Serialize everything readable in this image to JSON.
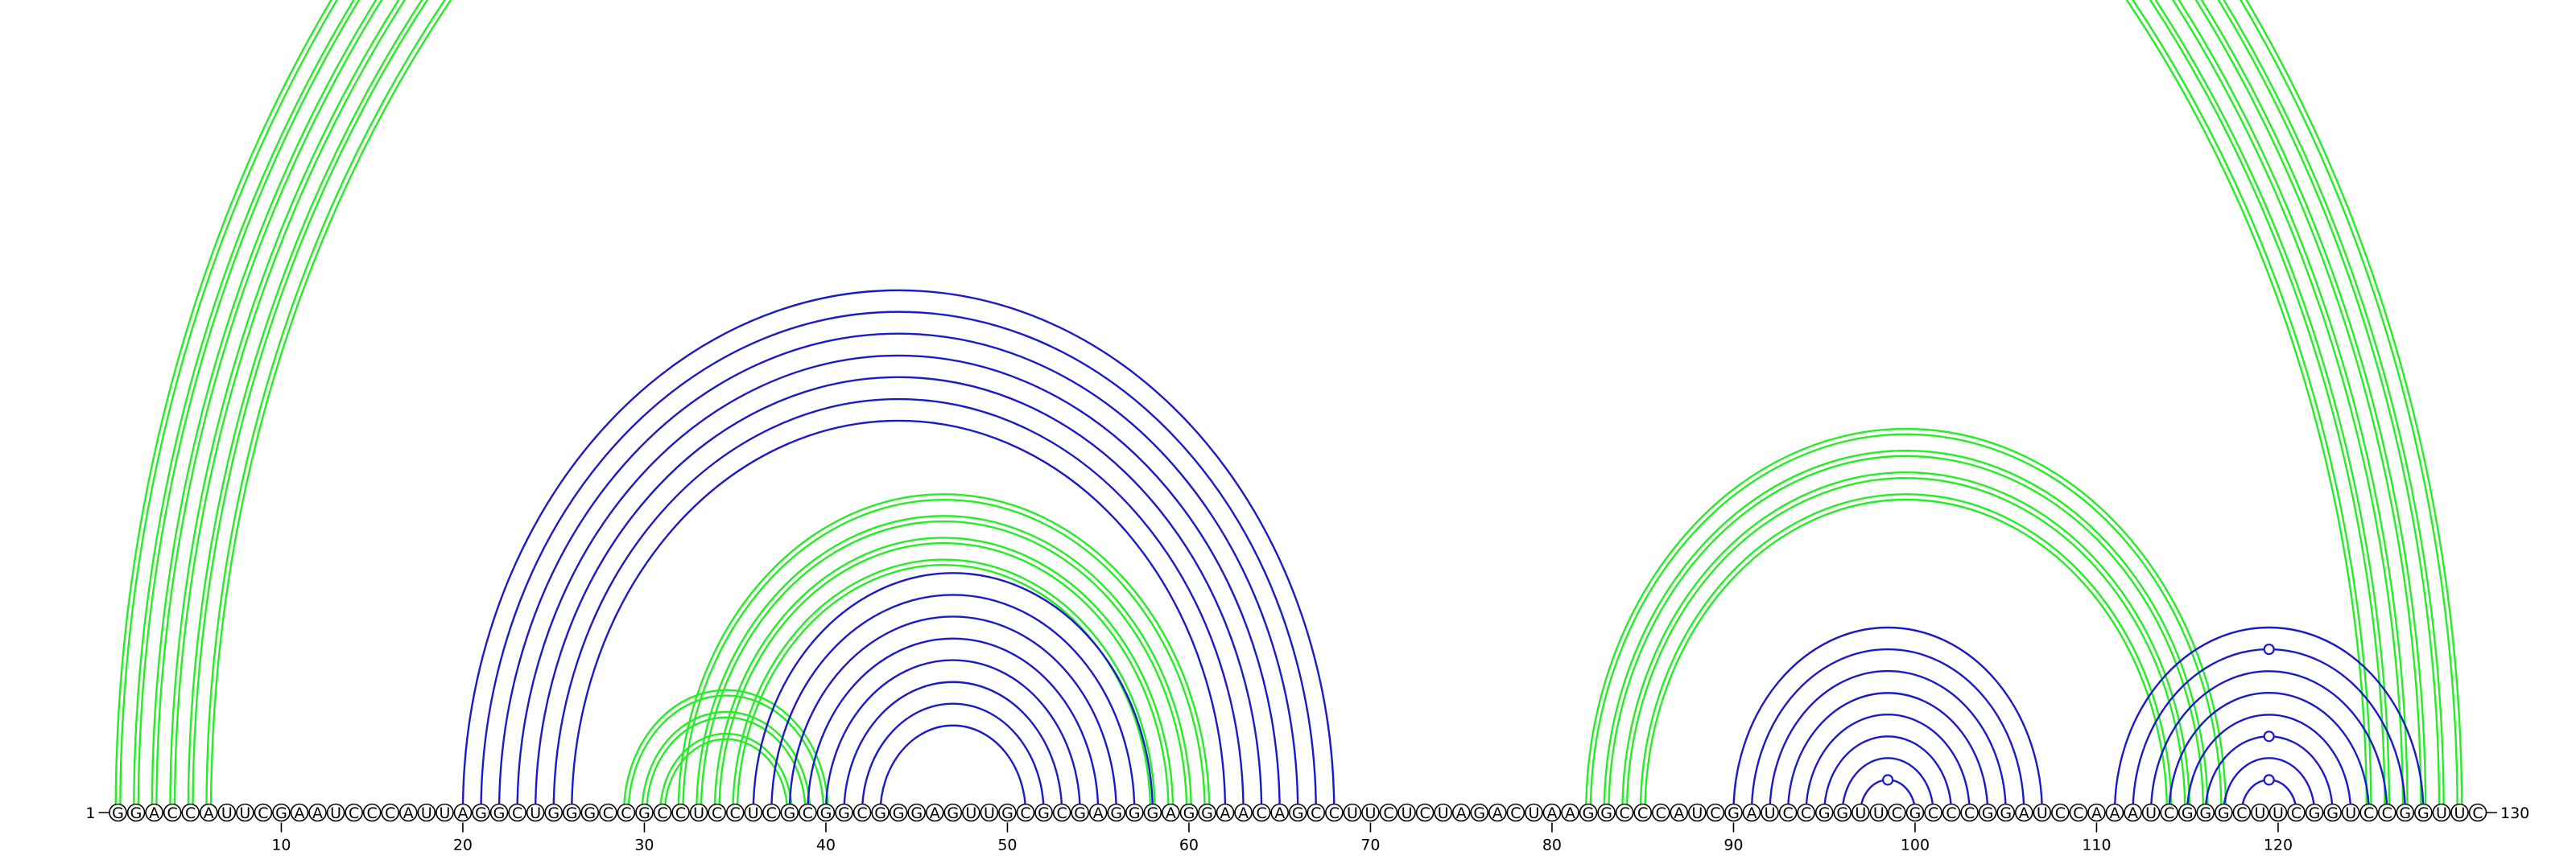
{
  "colors": {
    "green": "#22ee22",
    "blue": "#1a1acc",
    "backbone": "#000000"
  },
  "sequence": "GGACCAUUCGAAUCCCAUUAGGCUGGGCCGCCUCCUCGCGGCGGGAGUUGCGCGAGGGAGGAACAGCCUUCUCUAGACUAAGGCCCAUCGAUCCGGUUCGCCCGGAUCCAAAUCGGGCUUCGGUCCGGUUC",
  "start_label": "1",
  "end_label": "130",
  "tick_positions": [
    "10",
    "20",
    "30",
    "40",
    "50",
    "60",
    "70",
    "80",
    "90",
    "100",
    "110",
    "120"
  ],
  "arc_groups": [
    {
      "color": "green",
      "lines": "double",
      "pairs": [
        [
          1,
          130
        ],
        [
          2,
          129
        ],
        [
          3,
          128
        ],
        [
          4,
          127
        ],
        [
          5,
          126
        ],
        [
          6,
          125
        ]
      ]
    },
    {
      "color": "green",
      "lines": "double",
      "pairs": [
        [
          29,
          40
        ],
        [
          30,
          39
        ],
        [
          31,
          38
        ]
      ]
    },
    {
      "color": "green",
      "lines": "double",
      "pairs": [
        [
          32,
          61
        ],
        [
          33,
          60
        ],
        [
          34,
          59
        ],
        [
          35,
          58
        ]
      ]
    },
    {
      "color": "blue",
      "lines": "single",
      "pairs": [
        [
          20,
          68
        ],
        [
          21,
          67
        ],
        [
          22,
          66
        ],
        [
          23,
          65
        ],
        [
          24,
          64
        ],
        [
          25,
          63
        ],
        [
          26,
          62
        ]
      ]
    },
    {
      "color": "blue",
      "lines": "single",
      "pairs": [
        [
          36,
          58
        ],
        [
          37,
          57
        ],
        [
          38,
          56
        ],
        [
          39,
          55
        ],
        [
          40,
          54
        ],
        [
          41,
          53
        ],
        [
          42,
          52
        ],
        [
          43,
          51
        ]
      ]
    },
    {
      "color": "green",
      "lines": "double",
      "pairs": [
        [
          82,
          117
        ],
        [
          83,
          116
        ],
        [
          84,
          115
        ],
        [
          85,
          114
        ]
      ]
    },
    {
      "color": "blue",
      "lines": "single",
      "pairs": [
        [
          90,
          107
        ],
        [
          91,
          106
        ],
        [
          92,
          105
        ],
        [
          93,
          104
        ],
        [
          94,
          103
        ],
        [
          95,
          102
        ],
        [
          96,
          101
        ],
        [
          97,
          100
        ]
      ]
    },
    {
      "color": "blue",
      "lines": "single",
      "pairs": [
        [
          111,
          128
        ],
        [
          112,
          127
        ],
        [
          113,
          126
        ],
        [
          114,
          125
        ],
        [
          115,
          124
        ],
        [
          116,
          123
        ],
        [
          117,
          122
        ],
        [
          118,
          121
        ]
      ]
    }
  ],
  "markers": [
    {
      "color": "green",
      "center": 65.5
    },
    {
      "color": "blue",
      "center": 98.5
    },
    {
      "color": "blue",
      "center": 119.5
    },
    {
      "color": "blue",
      "center": 119.5
    },
    {
      "color": "blue",
      "center": 119.5
    }
  ]
}
